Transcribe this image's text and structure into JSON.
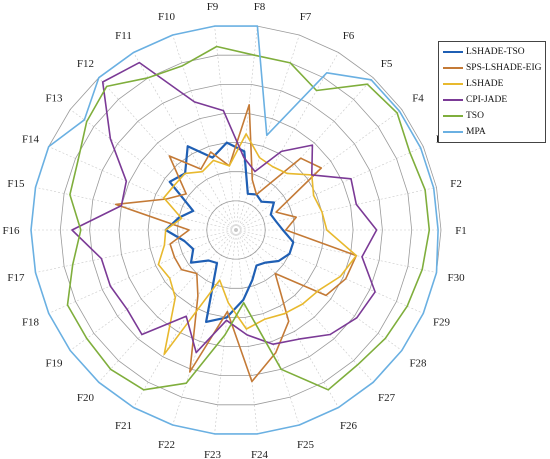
{
  "chart_data": {
    "type": "radar",
    "axes": [
      "F1",
      "F2",
      "F3",
      "F4",
      "F5",
      "F6",
      "F7",
      "F8",
      "F9",
      "F10",
      "F11",
      "F12",
      "F13",
      "F14",
      "F15",
      "F16",
      "F17",
      "F18",
      "F19",
      "F20",
      "F21",
      "F22",
      "F23",
      "F24",
      "F25",
      "F26",
      "F27",
      "F28",
      "F29",
      "F30"
    ],
    "rlim": [
      0,
      7
    ],
    "rings": [
      1,
      2,
      3,
      4,
      5,
      6,
      7
    ],
    "grid": true,
    "legend_position": "top-right",
    "series": [
      {
        "name": "LSHADE-TSO",
        "color": "#1f5fb4",
        "values": [
          1.6,
          1.4,
          1.3,
          1.6,
          1.3,
          1.4,
          1.3,
          2.7,
          3.0,
          2.6,
          3.3,
          2.6,
          2.8,
          1.6,
          2.0,
          2.4,
          1.8,
          1.6,
          1.9,
          1.4,
          1.3,
          3.3,
          3.0,
          2.4,
          1.8,
          1.4,
          1.5,
          1.8,
          2.0,
          2.0
        ]
      },
      {
        "name": "SPS-LSHADE-EIG",
        "color": "#c47a36",
        "values": [
          1.7,
          2.1,
          1.5,
          3.6,
          3.3,
          1.4,
          1.8,
          4.3,
          2.2,
          2.8,
          2.4,
          3.4,
          2.1,
          2.6,
          4.2,
          1.6,
          2.3,
          2.3,
          2.3,
          2.0,
          2.6,
          5.1,
          2.8,
          5.2,
          4.4,
          3.6,
          2.0,
          3.8,
          4.1,
          4.2
        ]
      },
      {
        "name": "LSHADE",
        "color": "#e8b92e",
        "values": [
          3.1,
          3.0,
          2.9,
          3.2,
          2.6,
          2.5,
          2.6,
          3.3,
          2.2,
          2.5,
          2.3,
          2.6,
          2.6,
          2.7,
          1.9,
          2.4,
          2.5,
          2.9,
          2.8,
          3.1,
          4.9,
          1.8,
          2.5,
          3.4,
          3.2,
          3.3,
          3.4,
          3.5,
          3.9,
          4.2
        ]
      },
      {
        "name": "CPI-JADE",
        "color": "#7b3a96",
        "values": [
          4.8,
          4.2,
          4.3,
          3.2,
          3.9,
          3.1,
          2.1,
          2.5,
          4.1,
          4.6,
          6.6,
          6.8,
          5.3,
          4.1,
          4.0,
          5.6,
          4.7,
          4.7,
          4.6,
          4.8,
          3.4,
          4.4,
          3.1,
          3.6,
          4.1,
          4.3,
          4.8,
          5.1,
          5.2,
          4.4
        ]
      },
      {
        "name": "TSO",
        "color": "#7fae3c",
        "values": [
          6.6,
          6.6,
          6.5,
          6.8,
          6.7,
          5.5,
          6.0,
          6.0,
          6.3,
          5.9,
          6.0,
          6.6,
          6.3,
          5.9,
          5.8,
          5.3,
          5.7,
          6.3,
          6.3,
          6.4,
          6.3,
          5.5,
          3.6,
          2.5,
          5.0,
          6.3,
          6.2,
          6.3,
          6.4,
          6.5
        ]
      },
      {
        "name": "MPA",
        "color": "#6ab0e2",
        "values": [
          6.9,
          6.9,
          6.9,
          6.9,
          6.9,
          6.2,
          3.4,
          7.0,
          7.0,
          7.0,
          7.0,
          7.0,
          6.4,
          7.0,
          7.0,
          7.0,
          7.0,
          7.0,
          7.0,
          7.0,
          7.0,
          7.0,
          7.0,
          7.0,
          7.0,
          7.0,
          7.0,
          7.0,
          7.0,
          7.0
        ]
      }
    ]
  }
}
